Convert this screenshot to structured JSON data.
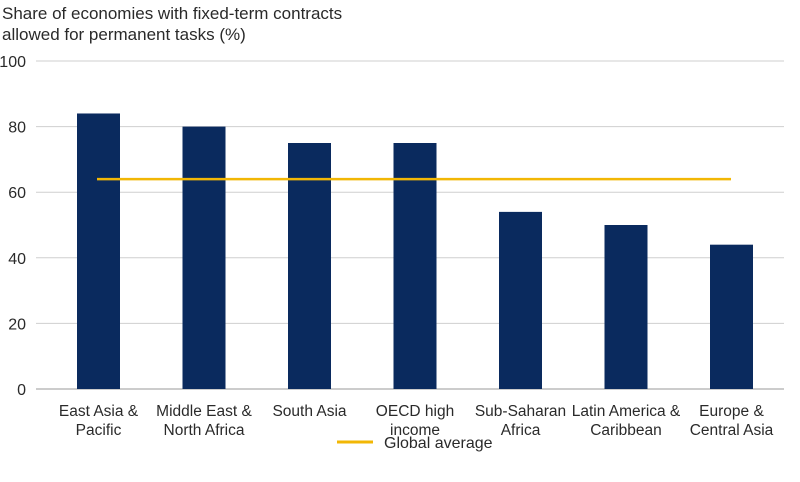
{
  "chart_data": {
    "type": "bar",
    "title": "",
    "ylabel_lines": [
      "Share of economies with fixed-term contracts",
      "allowed for permanent tasks (%)"
    ],
    "xlabel": "",
    "ylim": [
      0,
      100
    ],
    "yticks": [
      0,
      20,
      40,
      60,
      80,
      100
    ],
    "grid": true,
    "categories": [
      [
        "East Asia &",
        "Pacific"
      ],
      [
        "Middle East &",
        "North Africa"
      ],
      [
        "South Asia"
      ],
      [
        "OECD high",
        "income"
      ],
      [
        "Sub-Saharan",
        "Africa"
      ],
      [
        "Latin America &",
        "Caribbean"
      ],
      [
        "Europe &",
        "Central Asia"
      ]
    ],
    "series": [
      {
        "values": [
          84,
          80,
          75,
          75,
          54,
          50,
          44
        ],
        "color": "#0a2a5e"
      }
    ],
    "reference_line": {
      "name": "Global average",
      "value": 64,
      "color": "#f2b705"
    },
    "legend_position": "bottom-center"
  }
}
